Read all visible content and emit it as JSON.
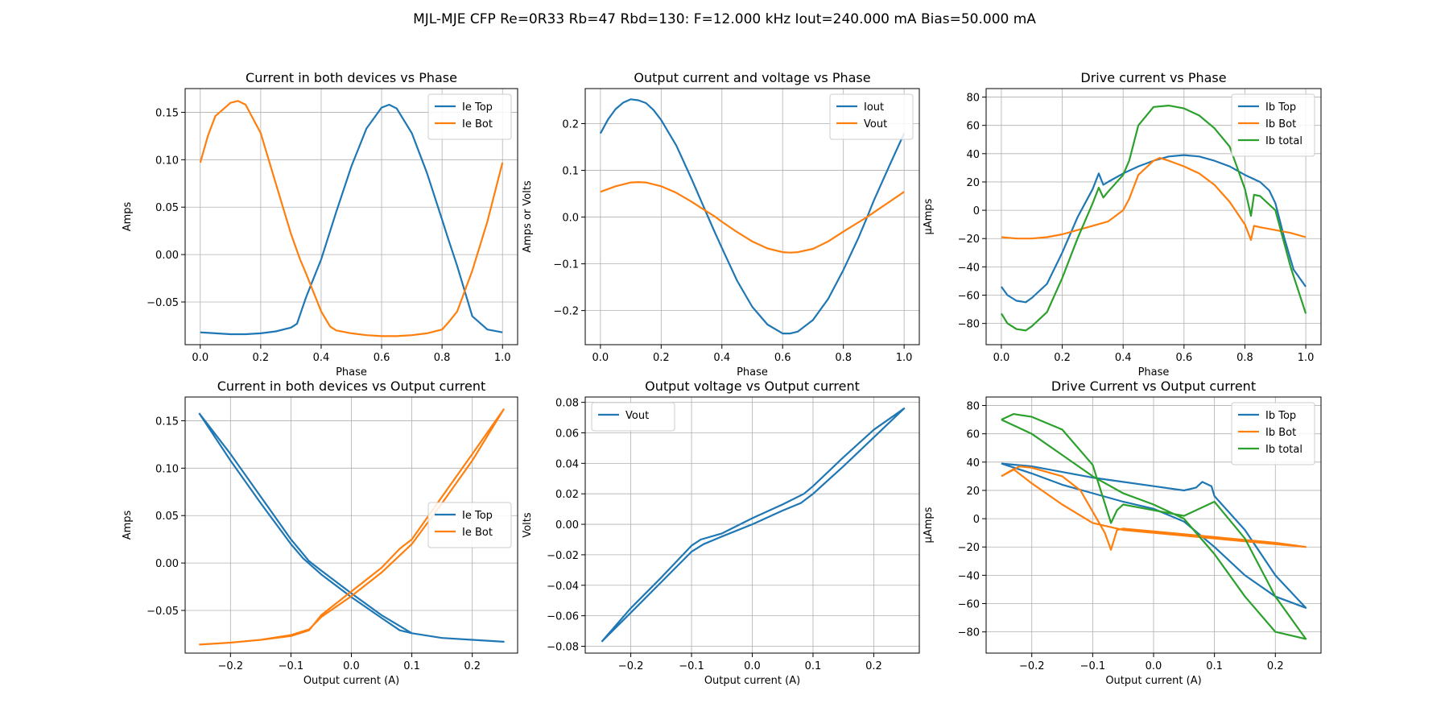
{
  "figure": {
    "suptitle": "MJL-MJE CFP Re=0R33 Rb=47 Rbd=130: F=12.000 kHz Iout=240.000 mA Bias=50.000 mA"
  },
  "chart_data": [
    {
      "id": "ie-vs-phase",
      "type": "line",
      "title": "Current in both devices vs Phase",
      "xlabel": "Phase",
      "ylabel": "Amps",
      "xlim": [
        -0.05,
        1.05
      ],
      "ylim": [
        -0.095,
        0.175
      ],
      "xticks": [
        0.0,
        0.2,
        0.4,
        0.6,
        0.8,
        1.0
      ],
      "xtick_labels": [
        "0.0",
        "0.2",
        "0.4",
        "0.6",
        "0.8",
        "1.0"
      ],
      "yticks": [
        -0.05,
        0.0,
        0.05,
        0.1,
        0.15
      ],
      "ytick_labels": [
        "−0.05",
        "0.00",
        "0.05",
        "0.10",
        "0.15"
      ],
      "grid": true,
      "legend": "upper right",
      "series": [
        {
          "name": "Ie Top",
          "color": "#1f77b4",
          "x": [
            0.0,
            0.05,
            0.1,
            0.15,
            0.2,
            0.25,
            0.3,
            0.32,
            0.35,
            0.4,
            0.45,
            0.5,
            0.55,
            0.6,
            0.625,
            0.65,
            0.7,
            0.75,
            0.8,
            0.82,
            0.85,
            0.9,
            0.95,
            1.0
          ],
          "y": [
            -0.082,
            -0.083,
            -0.084,
            -0.084,
            -0.083,
            -0.081,
            -0.077,
            -0.073,
            -0.045,
            -0.005,
            0.045,
            0.093,
            0.133,
            0.155,
            0.158,
            0.154,
            0.128,
            0.086,
            0.037,
            0.017,
            -0.012,
            -0.065,
            -0.079,
            -0.082
          ]
        },
        {
          "name": "Ie Bot",
          "color": "#ff7f0e",
          "x": [
            0.0,
            0.025,
            0.05,
            0.1,
            0.125,
            0.15,
            0.2,
            0.25,
            0.3,
            0.33,
            0.35,
            0.4,
            0.43,
            0.45,
            0.5,
            0.55,
            0.6,
            0.65,
            0.7,
            0.75,
            0.8,
            0.82,
            0.85,
            0.9,
            0.95,
            1.0
          ],
          "y": [
            0.097,
            0.125,
            0.146,
            0.16,
            0.162,
            0.158,
            0.128,
            0.075,
            0.022,
            -0.005,
            -0.02,
            -0.06,
            -0.076,
            -0.08,
            -0.083,
            -0.085,
            -0.086,
            -0.086,
            -0.085,
            -0.083,
            -0.079,
            -0.072,
            -0.06,
            -0.017,
            0.035,
            0.097
          ]
        }
      ]
    },
    {
      "id": "out-vs-phase",
      "type": "line",
      "title": "Output current and voltage vs Phase",
      "xlabel": "Phase",
      "ylabel": "Amps or Volts",
      "xlim": [
        -0.05,
        1.05
      ],
      "ylim": [
        -0.273,
        0.275
      ],
      "xticks": [
        0.0,
        0.2,
        0.4,
        0.6,
        0.8,
        1.0
      ],
      "xtick_labels": [
        "0.0",
        "0.2",
        "0.4",
        "0.6",
        "0.8",
        "1.0"
      ],
      "yticks": [
        -0.2,
        -0.1,
        0.0,
        0.1,
        0.2
      ],
      "ytick_labels": [
        "−0.2",
        "−0.1",
        "0.0",
        "0.1",
        "0.2"
      ],
      "grid": true,
      "legend": "upper right",
      "series": [
        {
          "name": "Iout",
          "color": "#1f77b4",
          "x": [
            0.0,
            0.025,
            0.05,
            0.075,
            0.1,
            0.125,
            0.15,
            0.175,
            0.2,
            0.25,
            0.3,
            0.35,
            0.375,
            0.4,
            0.45,
            0.5,
            0.55,
            0.6,
            0.625,
            0.65,
            0.7,
            0.75,
            0.8,
            0.85,
            0.875,
            0.9,
            0.95,
            1.0
          ],
          "y": [
            0.179,
            0.209,
            0.231,
            0.245,
            0.252,
            0.25,
            0.244,
            0.229,
            0.208,
            0.153,
            0.082,
            0.007,
            -0.03,
            -0.066,
            -0.136,
            -0.192,
            -0.23,
            -0.249,
            -0.249,
            -0.245,
            -0.22,
            -0.175,
            -0.113,
            -0.044,
            -0.005,
            0.035,
            0.108,
            0.179
          ]
        },
        {
          "name": "Vout",
          "color": "#ff7f0e",
          "x": [
            0.0,
            0.05,
            0.1,
            0.125,
            0.15,
            0.2,
            0.25,
            0.3,
            0.35,
            0.375,
            0.4,
            0.45,
            0.5,
            0.55,
            0.6,
            0.625,
            0.65,
            0.7,
            0.75,
            0.8,
            0.85,
            0.875,
            0.9,
            0.95,
            1.0
          ],
          "y": [
            0.054,
            0.066,
            0.074,
            0.075,
            0.074,
            0.066,
            0.052,
            0.033,
            0.012,
            0.002,
            -0.01,
            -0.032,
            -0.052,
            -0.067,
            -0.075,
            -0.076,
            -0.075,
            -0.068,
            -0.052,
            -0.031,
            -0.011,
            -0.001,
            0.01,
            0.032,
            0.054
          ]
        }
      ]
    },
    {
      "id": "ib-vs-phase",
      "type": "line",
      "title": "Drive current vs Phase",
      "xlabel": "Phase",
      "ylabel": "µAmps",
      "xlim": [
        -0.05,
        1.05
      ],
      "ylim": [
        -95,
        86
      ],
      "xticks": [
        0.0,
        0.2,
        0.4,
        0.6,
        0.8,
        1.0
      ],
      "xtick_labels": [
        "0.0",
        "0.2",
        "0.4",
        "0.6",
        "0.8",
        "1.0"
      ],
      "yticks": [
        -80,
        -60,
        -40,
        -20,
        0,
        20,
        40,
        60,
        80
      ],
      "ytick_labels": [
        "−80",
        "−60",
        "−40",
        "−20",
        "0",
        "20",
        "40",
        "60",
        "80"
      ],
      "grid": true,
      "legend": "upper right",
      "series": [
        {
          "name": "Ib Top",
          "color": "#1f77b4",
          "x": [
            0.0,
            0.02,
            0.05,
            0.08,
            0.1,
            0.15,
            0.2,
            0.25,
            0.3,
            0.32,
            0.335,
            0.35,
            0.4,
            0.45,
            0.5,
            0.55,
            0.6,
            0.65,
            0.7,
            0.75,
            0.8,
            0.85,
            0.88,
            0.9,
            0.93,
            0.96,
            1.0
          ],
          "y": [
            -54,
            -60,
            -64,
            -65,
            -62,
            -52,
            -30,
            -5,
            15,
            26,
            18,
            20,
            26,
            31,
            35,
            38,
            39,
            38,
            35,
            31,
            25,
            20,
            14,
            5,
            -20,
            -42,
            -54
          ]
        },
        {
          "name": "Ib Bot",
          "color": "#ff7f0e",
          "x": [
            0.0,
            0.05,
            0.1,
            0.15,
            0.2,
            0.25,
            0.3,
            0.35,
            0.4,
            0.42,
            0.45,
            0.5,
            0.52,
            0.55,
            0.6,
            0.65,
            0.7,
            0.75,
            0.8,
            0.82,
            0.83,
            0.85,
            0.9,
            0.95,
            1.0
          ],
          "y": [
            -19,
            -20,
            -20,
            -19,
            -17,
            -14,
            -11,
            -8,
            0,
            8,
            25,
            35,
            37,
            35,
            31,
            26,
            18,
            6,
            -10,
            -21,
            -11,
            -12,
            -14,
            -16,
            -19
          ]
        },
        {
          "name": "Ib total",
          "color": "#2ca02c",
          "x": [
            0.0,
            0.02,
            0.05,
            0.08,
            0.1,
            0.15,
            0.2,
            0.25,
            0.3,
            0.32,
            0.335,
            0.35,
            0.4,
            0.42,
            0.45,
            0.5,
            0.55,
            0.6,
            0.65,
            0.7,
            0.75,
            0.8,
            0.82,
            0.83,
            0.85,
            0.9,
            0.95,
            1.0
          ],
          "y": [
            -73,
            -80,
            -84,
            -85,
            -82,
            -72,
            -48,
            -20,
            5,
            16,
            9,
            13,
            25,
            35,
            60,
            73,
            74,
            72,
            67,
            58,
            45,
            15,
            -4,
            11,
            10,
            0,
            -40,
            -73
          ]
        }
      ]
    },
    {
      "id": "ie-vs-iout",
      "type": "line",
      "title": "Current in both devices vs Output current",
      "xlabel": "Output current (A)",
      "ylabel": "Amps",
      "xlim": [
        -0.275,
        0.275
      ],
      "ylim": [
        -0.095,
        0.175
      ],
      "xticks": [
        -0.2,
        -0.1,
        0.0,
        0.1,
        0.2
      ],
      "xtick_labels": [
        "−0.2",
        "−0.1",
        "0.0",
        "0.1",
        "0.2"
      ],
      "yticks": [
        -0.05,
        0.0,
        0.05,
        0.1,
        0.15
      ],
      "ytick_labels": [
        "−0.05",
        "0.00",
        "0.05",
        "0.10",
        "0.15"
      ],
      "grid": true,
      "legend": "center right",
      "series": [
        {
          "name": "Ie Top",
          "color": "#1f77b4",
          "x": [
            -0.252,
            -0.2,
            -0.15,
            -0.1,
            -0.07,
            -0.05,
            0.0,
            0.05,
            0.1,
            0.15,
            0.2,
            0.252,
            0.2,
            0.15,
            0.1,
            0.08,
            0.05,
            0.0,
            -0.05,
            -0.08,
            -0.1,
            -0.15,
            -0.2,
            -0.252
          ],
          "y": [
            0.158,
            0.115,
            0.07,
            0.025,
            0.002,
            -0.008,
            -0.032,
            -0.055,
            -0.074,
            -0.079,
            -0.081,
            -0.083,
            -0.081,
            -0.079,
            -0.074,
            -0.071,
            -0.058,
            -0.036,
            -0.012,
            0.005,
            0.02,
            0.063,
            0.108,
            0.158
          ]
        },
        {
          "name": "Ie Bot",
          "color": "#ff7f0e",
          "x": [
            -0.252,
            -0.2,
            -0.15,
            -0.1,
            -0.07,
            -0.05,
            0.0,
            0.05,
            0.1,
            0.15,
            0.2,
            0.252,
            0.2,
            0.15,
            0.1,
            0.08,
            0.05,
            0.0,
            -0.05,
            -0.07,
            -0.1,
            -0.15,
            -0.2,
            -0.252
          ],
          "y": [
            -0.086,
            -0.084,
            -0.081,
            -0.076,
            -0.07,
            -0.057,
            -0.035,
            -0.01,
            0.02,
            0.063,
            0.108,
            0.162,
            0.115,
            0.07,
            0.025,
            0.015,
            -0.005,
            -0.03,
            -0.055,
            -0.071,
            -0.077,
            -0.081,
            -0.084,
            -0.086
          ]
        }
      ]
    },
    {
      "id": "vout-vs-iout",
      "type": "line",
      "title": "Output voltage vs Output current",
      "xlabel": "Output current (A)",
      "ylabel": "Volts",
      "xlim": [
        -0.275,
        0.275
      ],
      "ylim": [
        -0.0845,
        0.0835
      ],
      "xticks": [
        -0.2,
        -0.1,
        0.0,
        0.1,
        0.2
      ],
      "xtick_labels": [
        "−0.2",
        "−0.1",
        "0.0",
        "0.1",
        "0.2"
      ],
      "yticks": [
        -0.08,
        -0.06,
        -0.04,
        -0.02,
        0.0,
        0.02,
        0.04,
        0.06,
        0.08
      ],
      "ytick_labels": [
        "−0.08",
        "−0.06",
        "−0.04",
        "−0.02",
        "0.00",
        "0.02",
        "0.04",
        "0.06",
        "0.08"
      ],
      "grid": true,
      "legend": "upper left",
      "series": [
        {
          "name": "Vout",
          "color": "#1f77b4",
          "x": [
            -0.248,
            -0.2,
            -0.15,
            -0.1,
            -0.08,
            -0.05,
            0.0,
            0.05,
            0.08,
            0.1,
            0.15,
            0.2,
            0.25,
            0.2,
            0.15,
            0.1,
            0.085,
            0.05,
            0.0,
            -0.05,
            -0.085,
            -0.1,
            -0.15,
            -0.2,
            -0.248
          ],
          "y": [
            -0.077,
            -0.058,
            -0.038,
            -0.018,
            -0.013,
            -0.008,
            0.0,
            0.009,
            0.014,
            0.02,
            0.038,
            0.057,
            0.076,
            0.062,
            0.044,
            0.025,
            0.02,
            0.013,
            0.004,
            -0.006,
            -0.01,
            -0.014,
            -0.035,
            -0.055,
            -0.077
          ]
        }
      ]
    },
    {
      "id": "ib-vs-iout",
      "type": "line",
      "title": "Drive Current vs Output current",
      "xlabel": "Output current (A)",
      "ylabel": "µAmps",
      "xlim": [
        -0.275,
        0.275
      ],
      "ylim": [
        -95,
        86
      ],
      "xticks": [
        -0.2,
        -0.1,
        0.0,
        0.1,
        0.2
      ],
      "xtick_labels": [
        "−0.2",
        "−0.1",
        "0.0",
        "0.1",
        "0.2"
      ],
      "yticks": [
        -80,
        -60,
        -40,
        -20,
        0,
        20,
        40,
        60,
        80
      ],
      "ytick_labels": [
        "−80",
        "−60",
        "−40",
        "−20",
        "0",
        "20",
        "40",
        "60",
        "80"
      ],
      "grid": true,
      "legend": "upper right",
      "series": [
        {
          "name": "Ib Top",
          "color": "#1f77b4",
          "x": [
            -0.25,
            -0.2,
            -0.15,
            -0.1,
            -0.05,
            0.0,
            0.05,
            0.07,
            0.08,
            0.095,
            0.1,
            0.15,
            0.2,
            0.25,
            0.2,
            0.15,
            0.1,
            0.05,
            0.0,
            -0.05,
            -0.1,
            -0.15,
            -0.2,
            -0.25
          ],
          "y": [
            39,
            37,
            33,
            29,
            26,
            23,
            20,
            22,
            26,
            23,
            16,
            -8,
            -40,
            -63,
            -55,
            -40,
            -20,
            -2,
            7,
            12,
            18,
            24,
            32,
            39
          ]
        },
        {
          "name": "Ib Bot",
          "color": "#ff7f0e",
          "x": [
            -0.25,
            -0.22,
            -0.2,
            -0.15,
            -0.12,
            -0.1,
            -0.08,
            -0.07,
            -0.06,
            -0.05,
            0.0,
            0.1,
            0.2,
            0.25,
            0.2,
            0.1,
            0.0,
            -0.05,
            -0.1,
            -0.15,
            -0.2,
            -0.23,
            -0.25
          ],
          "y": [
            30,
            37,
            36,
            30,
            20,
            5,
            -10,
            -22,
            -8,
            -7,
            -9,
            -13,
            -17,
            -20,
            -18,
            -14,
            -10,
            -8,
            -3,
            10,
            25,
            35,
            30
          ]
        },
        {
          "name": "Ib total",
          "color": "#2ca02c",
          "x": [
            -0.25,
            -0.23,
            -0.2,
            -0.15,
            -0.1,
            -0.07,
            -0.06,
            -0.05,
            0.0,
            0.05,
            0.08,
            0.1,
            0.15,
            0.2,
            0.25,
            0.2,
            0.15,
            0.1,
            0.05,
            0.0,
            -0.05,
            -0.1,
            -0.15,
            -0.2,
            -0.25
          ],
          "y": [
            70,
            74,
            72,
            63,
            38,
            -3,
            6,
            10,
            6,
            2,
            8,
            12,
            -14,
            -55,
            -85,
            -80,
            -55,
            -25,
            0,
            10,
            18,
            30,
            45,
            60,
            70
          ]
        }
      ]
    }
  ]
}
